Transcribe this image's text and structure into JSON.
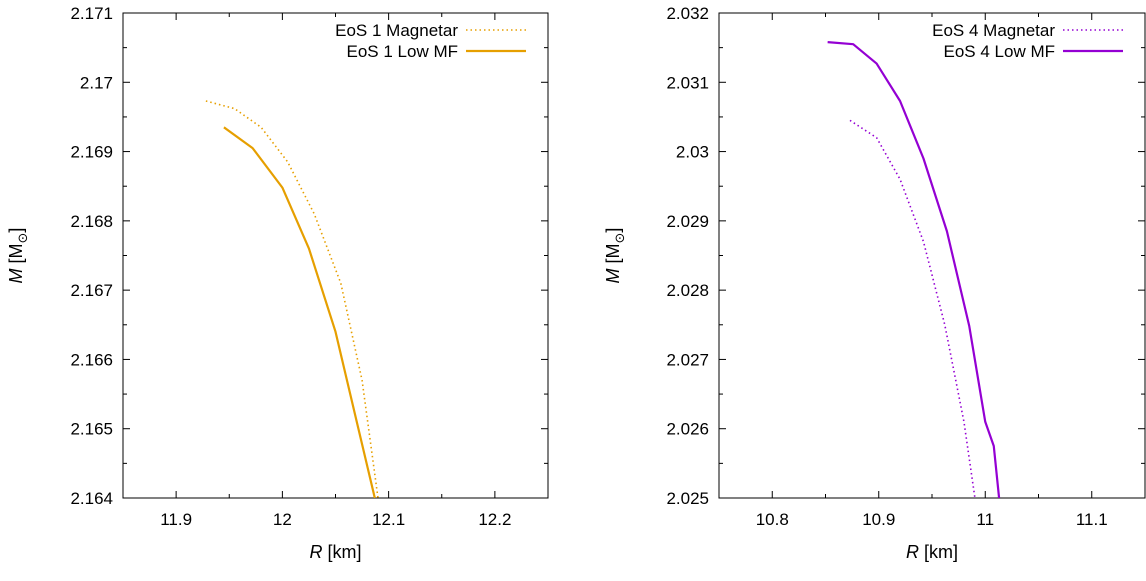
{
  "chart_data": [
    {
      "type": "line",
      "xlabel_var": "R",
      "xlabel_unit": " [km]",
      "ylabel_var": "M",
      "ylabel_unit_open": " [M",
      "ylabel_unit_sub": "⊙",
      "ylabel_unit_close": "]",
      "xlim": [
        11.85,
        12.25
      ],
      "ylim": [
        2.164,
        2.171
      ],
      "xticks": [
        11.9,
        12.0,
        12.1,
        12.2
      ],
      "xtick_labels": [
        "11.9",
        "12",
        "12.1",
        "12.2"
      ],
      "yticks": [
        2.164,
        2.165,
        2.166,
        2.167,
        2.168,
        2.169,
        2.17,
        2.171
      ],
      "ytick_labels": [
        "2.164",
        "2.165",
        "2.166",
        "2.167",
        "2.168",
        "2.169",
        "2.17",
        "2.171"
      ],
      "grid": false,
      "legend_position": "top-right",
      "series": [
        {
          "name": "EoS 1 Magnetar",
          "style": "dotted",
          "color": "#e69f00",
          "x": [
            11.928,
            11.955,
            11.98,
            12.005,
            12.03,
            12.055,
            12.075,
            12.09
          ],
          "y": [
            2.16973,
            2.16962,
            2.16935,
            2.16885,
            2.1681,
            2.1671,
            2.1657,
            2.164
          ]
        },
        {
          "name": "EoS 1 Low MF",
          "style": "solid",
          "color": "#e69f00",
          "x": [
            11.945,
            11.972,
            12.0,
            12.025,
            12.05,
            12.07,
            12.087
          ],
          "y": [
            2.16935,
            2.16905,
            2.16848,
            2.1676,
            2.1664,
            2.1651,
            2.164
          ]
        }
      ]
    },
    {
      "type": "line",
      "xlabel_var": "R",
      "xlabel_unit": " [km]",
      "ylabel_var": "M",
      "ylabel_unit_open": " [M",
      "ylabel_unit_sub": "⊙",
      "ylabel_unit_close": "]",
      "xlim": [
        10.75,
        11.15
      ],
      "ylim": [
        2.025,
        2.032
      ],
      "xticks": [
        10.8,
        10.9,
        11.0,
        11.1
      ],
      "xtick_labels": [
        "10.8",
        "10.9",
        "11",
        "11.1"
      ],
      "yticks": [
        2.025,
        2.026,
        2.027,
        2.028,
        2.029,
        2.03,
        2.031,
        2.032
      ],
      "ytick_labels": [
        "2.025",
        "2.026",
        "2.027",
        "2.028",
        "2.029",
        "2.03",
        "2.031",
        "2.032"
      ],
      "grid": false,
      "legend_position": "top-right",
      "series": [
        {
          "name": "EoS 4 Magnetar",
          "style": "dotted",
          "color": "#9400d3",
          "x": [
            10.873,
            10.898,
            10.92,
            10.942,
            10.962,
            10.98,
            10.995,
            11.005
          ],
          "y": [
            2.03045,
            2.0302,
            2.0296,
            2.0287,
            2.0275,
            2.0261,
            2.0245,
            2.025
          ]
        },
        {
          "name": "EoS 4 Low MF",
          "style": "solid",
          "color": "#9400d3",
          "x": [
            10.852,
            10.876,
            10.898,
            10.92,
            10.942,
            10.964,
            10.985,
            11.0,
            11.008,
            11.013
          ],
          "y": [
            2.03158,
            2.03155,
            2.03127,
            2.03073,
            2.0299,
            2.02885,
            2.02748,
            2.0261,
            2.02575,
            2.025
          ]
        }
      ]
    }
  ]
}
